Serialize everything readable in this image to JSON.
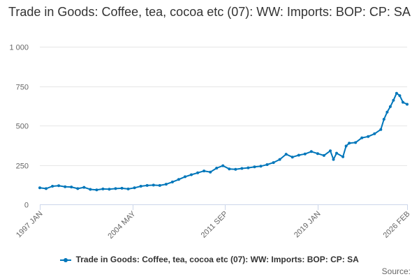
{
  "chart_data": {
    "type": "line",
    "title": "Trade in Goods: Coffee, tea, cocoa etc (07): WW: Imports: BOP: CP: SA",
    "xlabel": "",
    "ylabel": "",
    "ylim": [
      0,
      1000
    ],
    "yticks": [
      0,
      250,
      500,
      750,
      1000
    ],
    "ytick_labels": [
      "0",
      "250",
      "500",
      "750",
      "1 000"
    ],
    "x_range": [
      "1997-01",
      "2026-02"
    ],
    "xticks": [
      "1997-01",
      "2004-05",
      "2011-09",
      "2019-01",
      "2026-02"
    ],
    "xtick_labels": [
      "1997 JAN",
      "2004 MAY",
      "2011 SEP",
      "2019 JAN",
      "2026 FEB"
    ],
    "grid": "horizontal",
    "legend_position": "bottom-center",
    "series": [
      {
        "name": "Trade in Goods: Coffee, tea, cocoa etc (07): WW: Imports: BOP: CP: SA",
        "color": "#0076ba",
        "x": [
          "1997-01",
          "1997-07",
          "1998-01",
          "1998-07",
          "1999-01",
          "1999-07",
          "2000-01",
          "2000-07",
          "2001-01",
          "2001-07",
          "2002-01",
          "2002-07",
          "2003-01",
          "2003-07",
          "2004-01",
          "2004-07",
          "2005-01",
          "2005-07",
          "2006-01",
          "2006-07",
          "2007-01",
          "2007-07",
          "2008-01",
          "2008-07",
          "2009-01",
          "2009-07",
          "2010-01",
          "2010-07",
          "2011-01",
          "2011-07",
          "2012-01",
          "2012-07",
          "2013-01",
          "2013-07",
          "2014-01",
          "2014-07",
          "2015-01",
          "2015-07",
          "2016-01",
          "2016-07",
          "2017-01",
          "2017-07",
          "2018-01",
          "2018-07",
          "2019-01",
          "2019-07",
          "2020-01",
          "2020-04",
          "2020-07",
          "2021-01",
          "2021-04",
          "2021-07",
          "2022-01",
          "2022-07",
          "2023-01",
          "2023-07",
          "2024-01",
          "2024-04",
          "2024-07",
          "2024-10",
          "2025-01",
          "2025-04",
          "2025-07",
          "2025-10",
          "2026-02"
        ],
        "values": [
          105,
          100,
          115,
          118,
          112,
          110,
          100,
          108,
          95,
          92,
          98,
          96,
          100,
          102,
          98,
          105,
          115,
          120,
          122,
          120,
          128,
          142,
          158,
          175,
          188,
          200,
          212,
          205,
          230,
          245,
          225,
          222,
          228,
          232,
          238,
          242,
          252,
          265,
          285,
          318,
          300,
          312,
          320,
          335,
          322,
          310,
          340,
          285,
          325,
          302,
          370,
          388,
          392,
          422,
          430,
          448,
          475,
          540,
          585,
          620,
          660,
          705,
          690,
          648,
          635
        ]
      }
    ]
  },
  "legend": {
    "label": "Trade in Goods: Coffee, tea, cocoa etc (07): WW: Imports: BOP: CP: SA"
  },
  "credits": {
    "text": "Source:"
  }
}
